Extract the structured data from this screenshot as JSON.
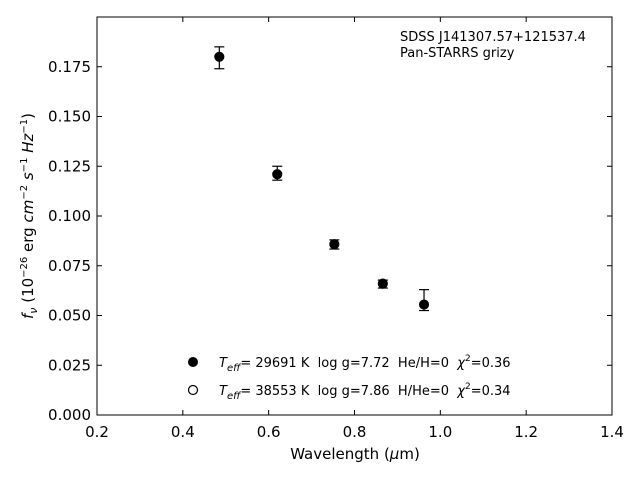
{
  "chart_data": {
    "type": "scatter",
    "annotation": [
      "SDSS J141307.57+121537.4",
      "Pan-STARRS grizy"
    ],
    "xlabel": "Wavelength (μm)",
    "ylabel": "fν (10⁻²⁶ erg cm⁻² s⁻¹ Hz⁻¹)",
    "xlim": [
      0.2,
      1.4
    ],
    "ylim": [
      0.0,
      0.2
    ],
    "xticks": [
      "0.2",
      "0.4",
      "0.6",
      "0.8",
      "1.0",
      "1.2",
      "1.4"
    ],
    "yticks": [
      "0.000",
      "0.025",
      "0.050",
      "0.075",
      "0.100",
      "0.125",
      "0.150",
      "0.175"
    ],
    "grid": false,
    "legend_position": "lower-center",
    "series": [
      {
        "name": "Teff= 29691 K  log g=7.72  He/H=0  χ²=0.36",
        "marker": "filled-circle",
        "x": [
          0.485,
          0.62,
          0.753,
          0.866,
          0.962
        ],
        "y": [
          0.18,
          0.121,
          0.0858,
          0.066,
          0.0555
        ],
        "err_low": [
          0.006,
          0.003,
          0.0024,
          0.0022,
          0.003
        ],
        "err_high": [
          0.005,
          0.004,
          0.0022,
          0.0018,
          0.0075
        ]
      },
      {
        "name": "Teff= 38553 K  log g=7.86  H/He=0  χ²=0.34",
        "marker": "open-circle",
        "x": [],
        "y": []
      }
    ],
    "legend": [
      {
        "marker": "filled-circle",
        "teff_symbol": "T",
        "teff_sub": "eff",
        "teff_text": "= 29691 K  log g=7.72  He/H=0  ",
        "chi_symbol": "χ",
        "chi_sup": "2",
        "chi_text": "=0.36"
      },
      {
        "marker": "open-circle",
        "teff_symbol": "T",
        "teff_sub": "eff",
        "teff_text": "= 38553 K  log g=7.86  H/He=0  ",
        "chi_symbol": "χ",
        "chi_sup": "2",
        "chi_text": "=0.34"
      }
    ]
  }
}
